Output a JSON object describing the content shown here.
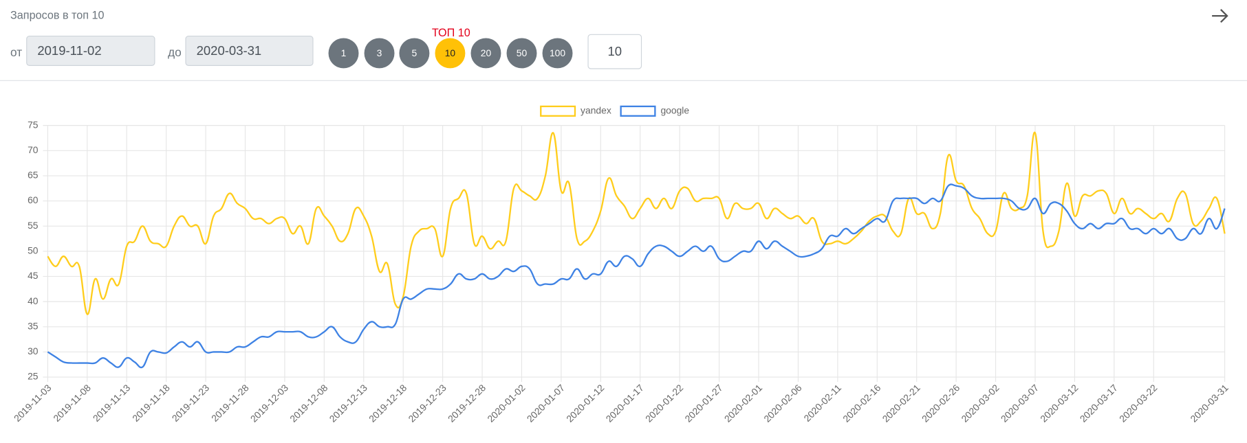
{
  "header": {
    "title": "Запросов в топ 10"
  },
  "filters": {
    "from_label": "от",
    "from_value": "2019-11-02",
    "to_label": "до",
    "to_value": "2020-03-31",
    "buttons": [
      "1",
      "3",
      "5",
      "10",
      "20",
      "50",
      "100"
    ],
    "active_caption": "ТОП 10",
    "count_input": "10"
  },
  "chart_data": {
    "type": "line",
    "categories": [
      "2019-11-03",
      null,
      null,
      null,
      null,
      "2019-11-08",
      null,
      null,
      null,
      null,
      "2019-11-13",
      null,
      null,
      null,
      null,
      "2019-11-18",
      null,
      null,
      null,
      null,
      "2019-11-23",
      null,
      null,
      null,
      null,
      "2019-11-28",
      null,
      null,
      null,
      null,
      "2019-12-03",
      null,
      null,
      null,
      null,
      "2019-12-08",
      null,
      null,
      null,
      null,
      "2019-12-13",
      null,
      null,
      null,
      null,
      "2019-12-18",
      null,
      null,
      null,
      null,
      "2019-12-23",
      null,
      null,
      null,
      null,
      "2019-12-28",
      null,
      null,
      null,
      null,
      "2020-01-02",
      null,
      null,
      null,
      null,
      "2020-01-07",
      null,
      null,
      null,
      null,
      "2020-01-12",
      null,
      null,
      null,
      null,
      "2020-01-17",
      null,
      null,
      null,
      null,
      "2020-01-22",
      null,
      null,
      null,
      null,
      "2020-01-27",
      null,
      null,
      null,
      null,
      "2020-02-01",
      null,
      null,
      null,
      null,
      "2020-02-06",
      null,
      null,
      null,
      null,
      "2020-02-11",
      null,
      null,
      null,
      null,
      "2020-02-16",
      null,
      null,
      null,
      null,
      "2020-02-21",
      null,
      null,
      null,
      null,
      "2020-02-26",
      null,
      null,
      null,
      null,
      "2020-03-02",
      null,
      null,
      null,
      null,
      "2020-03-07",
      null,
      null,
      null,
      null,
      "2020-03-12",
      null,
      null,
      null,
      null,
      "2020-03-17",
      null,
      null,
      null,
      null,
      "2020-03-22",
      null,
      null,
      null,
      null,
      null,
      null,
      null,
      null,
      "2020-03-31"
    ],
    "series": [
      {
        "name": "yandex",
        "color": "#ffcd1c",
        "values": [
          49,
          47,
          49,
          47,
          47,
          37.5,
          44.5,
          40.5,
          44.5,
          43.5,
          51,
          52,
          55,
          52,
          51.5,
          51,
          55,
          57,
          55,
          55,
          51.5,
          57,
          58.5,
          61.5,
          59.5,
          58.5,
          56.5,
          56.5,
          55.5,
          56.5,
          56.5,
          53.5,
          55,
          51.5,
          58.5,
          57,
          55,
          52,
          53.5,
          58.5,
          57,
          53,
          46,
          47.5,
          39.5,
          41,
          51,
          54,
          54.5,
          54.5,
          49,
          58.5,
          60.5,
          61.5,
          51.5,
          53,
          50.5,
          52,
          52,
          62.5,
          62,
          61,
          60.5,
          65,
          73.5,
          62,
          63.5,
          52.5,
          52,
          54,
          58,
          64.5,
          61,
          59,
          56.5,
          58.5,
          60.5,
          58.5,
          60.5,
          58.5,
          62,
          62.5,
          60,
          60.5,
          60.5,
          60.5,
          56.5,
          59.5,
          58.5,
          58.5,
          59.5,
          56.5,
          58.5,
          57.5,
          56.5,
          57,
          55.5,
          56.5,
          52,
          51.5,
          52,
          51.5,
          52.5,
          54,
          56,
          57,
          57,
          54,
          53.5,
          60.5,
          57.5,
          57.5,
          54.5,
          57.5,
          69,
          64,
          63,
          58.5,
          56.5,
          53.5,
          54,
          61.5,
          58.5,
          58.5,
          61,
          73.5,
          54,
          51,
          54,
          63.5,
          57,
          61,
          61,
          62,
          61.5,
          57.5,
          60.5,
          57.5,
          58.5,
          57.5,
          56.5,
          57.5,
          56,
          60.5,
          61.5,
          55.5,
          56,
          58.5,
          60.5,
          53.5
        ]
      },
      {
        "name": "google",
        "color": "#3e82e4",
        "values": [
          30,
          29,
          28,
          27.8,
          27.8,
          27.8,
          27.8,
          28.8,
          27.8,
          27,
          28.8,
          28,
          27,
          30,
          30,
          29.8,
          31,
          32,
          31,
          32,
          30,
          30,
          30,
          30,
          31,
          31,
          32,
          33,
          33,
          34,
          34,
          34,
          34,
          33,
          33,
          34,
          35,
          33,
          32,
          32,
          34.5,
          36,
          35,
          35,
          35.5,
          40.5,
          40.5,
          41.5,
          42.5,
          42.5,
          42.5,
          43.5,
          45.5,
          44.5,
          44.5,
          45.5,
          44.5,
          45,
          46.5,
          46,
          47,
          46.5,
          43.5,
          43.5,
          43.5,
          44.5,
          44.5,
          46.5,
          44.5,
          45.5,
          45.5,
          48,
          47,
          49,
          48.5,
          47,
          49.5,
          51,
          51,
          50,
          49,
          50,
          51,
          50,
          51,
          48.5,
          48,
          49,
          50,
          50,
          52,
          50.5,
          52,
          51,
          50,
          49,
          49,
          49.5,
          50.5,
          53,
          53,
          54.5,
          53.5,
          54.5,
          55.5,
          56.5,
          56,
          60,
          60.5,
          60.5,
          60.5,
          59.5,
          60.5,
          60,
          63,
          63,
          62.5,
          61,
          60.5,
          60.5,
          60.5,
          60.5,
          60,
          58.5,
          58.5,
          60.5,
          57.5,
          59.5,
          59.5,
          58,
          55.5,
          54.5,
          55.5,
          54.5,
          55.5,
          55.5,
          56.5,
          54.5,
          54.5,
          53.5,
          54.5,
          53.5,
          54.5,
          52.5,
          52.5,
          54.5,
          53.5,
          56.5,
          54.5,
          58.5
        ]
      }
    ],
    "ylim": [
      25,
      75
    ],
    "yticks": [
      25,
      30,
      35,
      40,
      45,
      50,
      55,
      60,
      65,
      70,
      75
    ],
    "grid": true,
    "legend": "top"
  }
}
